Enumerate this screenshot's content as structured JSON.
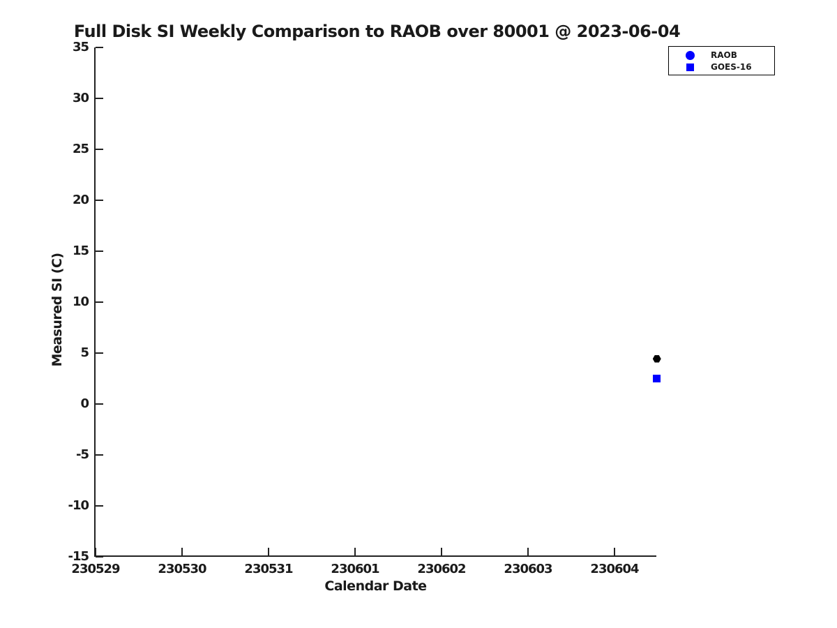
{
  "title": "Full Disk SI Weekly Comparison to RAOB over 80001 @ 2023-06-04",
  "colors": {
    "background": "#ffffff",
    "axis": "#222222",
    "text": "#1a1a1a",
    "raob_marker": "#000000",
    "goes16_marker": "#0000ff",
    "legend_marker_blue": "#0000ff"
  },
  "chart_data": {
    "type": "scatter",
    "title": "Full Disk SI Weekly Comparison to RAOB over 80001 @ 2023-06-04",
    "xlabel": "Calendar Date",
    "ylabel": "Measured SI (C)",
    "grid": false,
    "legend_position": "top-right",
    "x_unit": "days since 230529 (YYMMDD calendar dates)",
    "xlim": [
      0,
      6.5
    ],
    "ylim": [
      -15,
      35
    ],
    "x_tick_values": [
      0,
      1,
      2,
      3,
      4,
      5,
      6
    ],
    "x_tick_labels": [
      "230529",
      "230530",
      "230531",
      "230601",
      "230602",
      "230603",
      "230604"
    ],
    "y_ticks": [
      35,
      30,
      25,
      20,
      15,
      10,
      5,
      0,
      -5,
      -10,
      -15
    ],
    "series": [
      {
        "name": "RAOB",
        "marker": "hexagon",
        "marker_color": "#000000",
        "legend_marker": "circle",
        "legend_color": "#0000ff",
        "points": [
          {
            "x": 6.49,
            "y": 4.4
          }
        ]
      },
      {
        "name": "GOES-16",
        "marker": "square",
        "marker_color": "#0000ff",
        "legend_marker": "square",
        "legend_color": "#0000ff",
        "points": [
          {
            "x": 6.49,
            "y": 2.5
          }
        ]
      }
    ]
  }
}
